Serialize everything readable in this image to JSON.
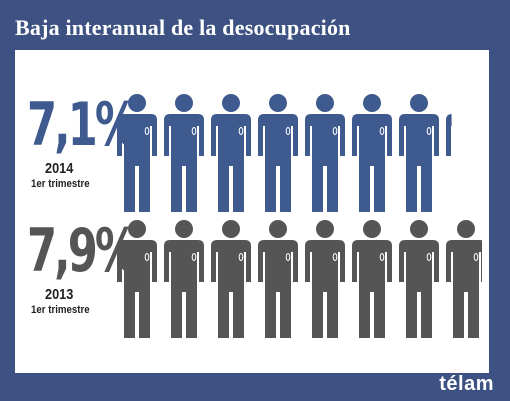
{
  "header": {
    "title": "Baja interanual de la desocupación"
  },
  "rows": [
    {
      "percentage": "7,1%",
      "year": "2014",
      "period": "1er trimestre",
      "color": "#3f5a8e",
      "figures": 7.1
    },
    {
      "percentage": "7,9%",
      "year": "2013",
      "period": "1er trimestre",
      "color": "#555555",
      "figures": 7.9
    }
  ],
  "brand": {
    "logo": "télam"
  },
  "icons": {
    "figure": "person-icon"
  }
}
